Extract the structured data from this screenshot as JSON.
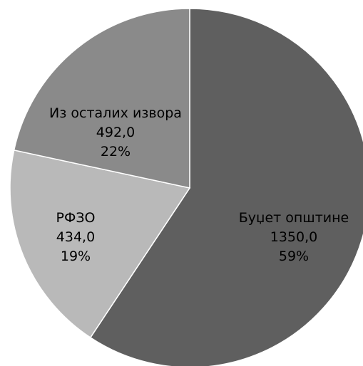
{
  "chart_data": {
    "type": "pie",
    "slices": [
      {
        "label": "Буџет општине",
        "value": 1350.0,
        "value_text": "1350,0",
        "percent_text": "59%",
        "color": "#5f5f5f"
      },
      {
        "label": "РФЗО",
        "value": 434.0,
        "value_text": "434,0",
        "percent_text": "19%",
        "color": "#b9b9b9"
      },
      {
        "label": "Из осталих извора",
        "value": 492.0,
        "value_text": "492,0",
        "percent_text": "22%",
        "color": "#8a8a8a"
      }
    ],
    "start_angle": "12 o'clock",
    "direction": "clockwise",
    "legend": "none"
  }
}
